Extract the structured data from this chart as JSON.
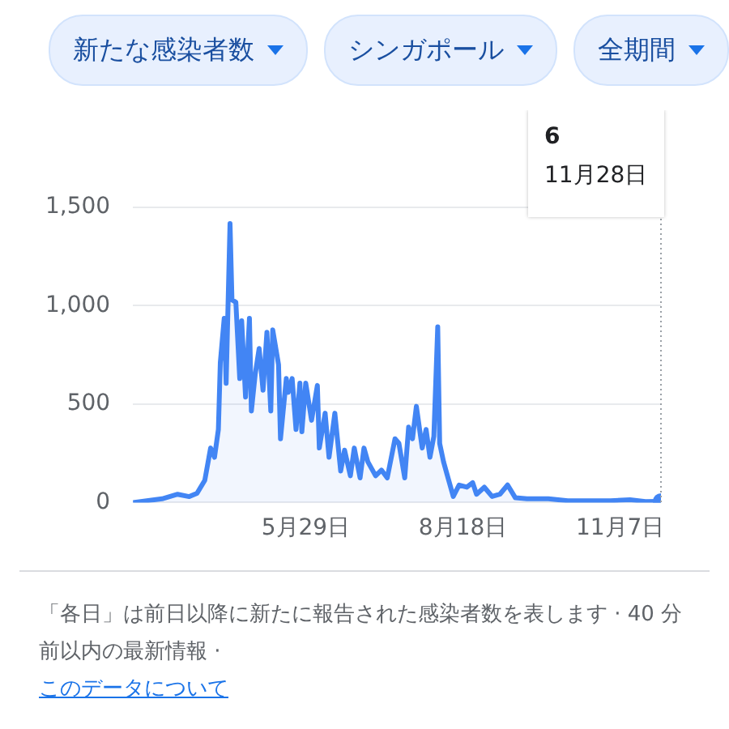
{
  "chart_data": {
    "type": "area",
    "annotations": [
      "新たな感染者数",
      "シンガポール",
      "全期間",
      "6",
      "11月28日",
      "「各日」は前日以降に新たに報告された感染者数を表します · 40 分前以内の最新情報 ·",
      "このデータについて"
    ],
    "x": [
      "--03-01",
      "--03-16",
      "--03-24",
      "--03-30",
      "--04-03",
      "--04-07",
      "--04-10",
      "--04-12",
      "--04-14",
      "--04-15",
      "--04-17",
      "--04-18",
      "--04-20",
      "--04-21",
      "--04-23",
      "--04-25",
      "--04-26",
      "--04-28",
      "--04-30",
      "--05-01",
      "--05-03",
      "--05-05",
      "--05-07",
      "--05-09",
      "--05-11",
      "--05-12",
      "--05-15",
      "--05-16",
      "--05-19",
      "--05-20",
      "--05-22",
      "--05-24",
      "--05-26",
      "--05-27",
      "--05-29",
      "--06-01",
      "--06-04",
      "--06-05",
      "--06-08",
      "--06-10",
      "--06-13",
      "--06-16",
      "--06-18",
      "--06-21",
      "--06-23",
      "--06-26",
      "--06-28",
      "--06-30",
      "--07-04",
      "--07-07",
      "--07-10",
      "--07-14",
      "--07-16",
      "--07-19",
      "--07-21",
      "--07-23",
      "--07-25",
      "--07-28",
      "--07-30",
      "--08-01",
      "--08-03",
      "--08-05",
      "--08-06",
      "--08-08",
      "--08-10",
      "--08-13",
      "--08-16",
      "--08-20",
      "--08-23",
      "--08-25",
      "--08-29",
      "--09-02",
      "--09-06",
      "--09-10",
      "--09-14",
      "--09-20",
      "--10-01",
      "--10-11",
      "--10-22",
      "--11-02",
      "--11-12",
      "--11-20",
      "--11-28"
    ],
    "series": [
      {
        "color": "#4285f4",
        "values": [
          0,
          19,
          42,
          30,
          47,
          113,
          277,
          230,
          371,
          712,
          936,
          606,
          1418,
          1030,
          1018,
          630,
          924,
          536,
          936,
          465,
          654,
          783,
          571,
          865,
          465,
          877,
          700,
          324,
          630,
          560,
          630,
          371,
          607,
          360,
          607,
          418,
          595,
          277,
          454,
          230,
          454,
          160,
          266,
          136,
          277,
          125,
          277,
          207,
          136,
          165,
          125,
          324,
          301,
          125,
          383,
          324,
          489,
          277,
          371,
          230,
          336,
          893,
          301,
          207,
          136,
          31,
          89,
          78,
          101,
          42,
          78,
          31,
          42,
          89,
          24,
          19,
          19,
          9,
          9,
          9,
          14,
          5,
          6
        ]
      }
    ],
    "xlim": [
      "--03-01",
      "--11-28"
    ],
    "xticks": [
      {
        "value": "--05-29",
        "label": "5月29日"
      },
      {
        "value": "--08-18",
        "label": "8月18日"
      },
      {
        "value": "--11-07",
        "label": "11月7日"
      }
    ],
    "ylim": [
      0,
      1500
    ],
    "yticks": [
      0,
      500,
      {
        "value": 1000,
        "label": "1,000"
      },
      {
        "value": 1500,
        "label": "1,500"
      }
    ],
    "ref_lines": [
      {
        "axis": "x",
        "value": "--11-28",
        "color": "#9aa0a6",
        "line_style": "dotted"
      }
    ],
    "grid": "y",
    "legend": false
  }
}
